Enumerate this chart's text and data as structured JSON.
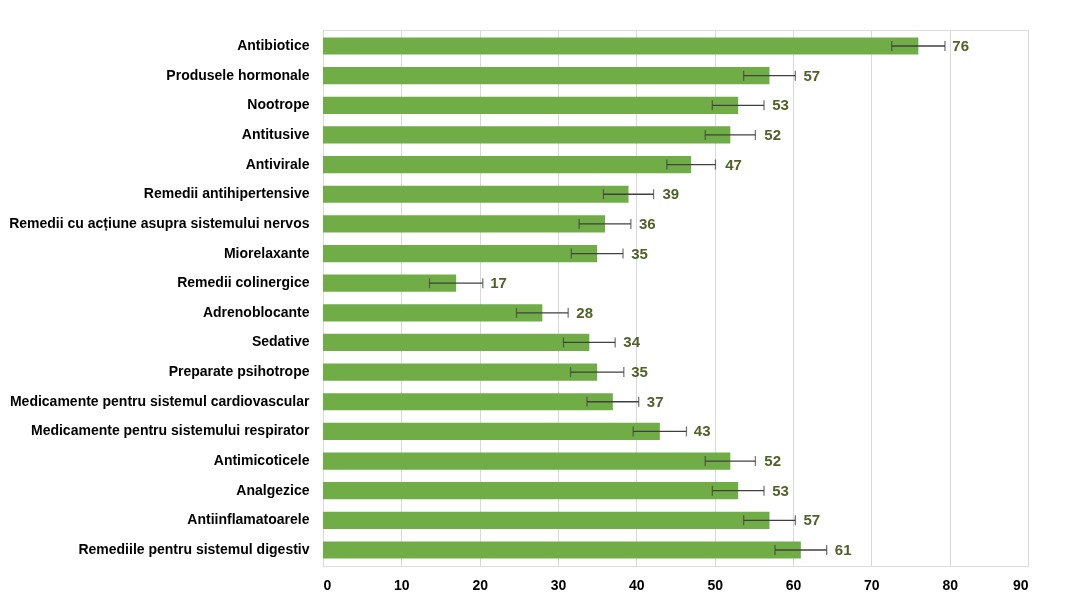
{
  "chart_data": {
    "type": "bar",
    "orientation": "horizontal",
    "categories": [
      "Antibiotice",
      "Produsele hormonale",
      "Nootrope",
      "Antitusive",
      "Antivirale",
      "Remedii antihipertensive",
      "Remedii cu acțiune asupra sistemului nervos",
      "Miorelaxante",
      "Remedii colinergice",
      "Adrenoblocante",
      "Sedative",
      "Preparate psihotrope",
      "Medicamente pentru sistemul cardiovascular",
      "Medicamente pentru sistemului respirator",
      "Antimicoticele",
      "Analgezice",
      "Antiinflamatoarele",
      "Remediile pentru sistemul digestiv"
    ],
    "values": [
      76,
      57,
      53,
      52,
      47,
      39,
      36,
      35,
      17,
      28,
      34,
      35,
      37,
      43,
      52,
      53,
      57,
      61
    ],
    "errors": [
      3.4,
      3.3,
      3.3,
      3.2,
      3.1,
      3.2,
      3.3,
      3.3,
      3.4,
      3.3,
      3.3,
      3.4,
      3.3,
      3.4,
      3.2,
      3.3,
      3.3,
      3.3
    ],
    "color": "#70ad47",
    "xlim": [
      0,
      90
    ],
    "xticks": [
      0,
      10,
      20,
      30,
      40,
      50,
      60,
      70,
      80,
      90
    ],
    "grid": "x",
    "data_labels": true
  }
}
